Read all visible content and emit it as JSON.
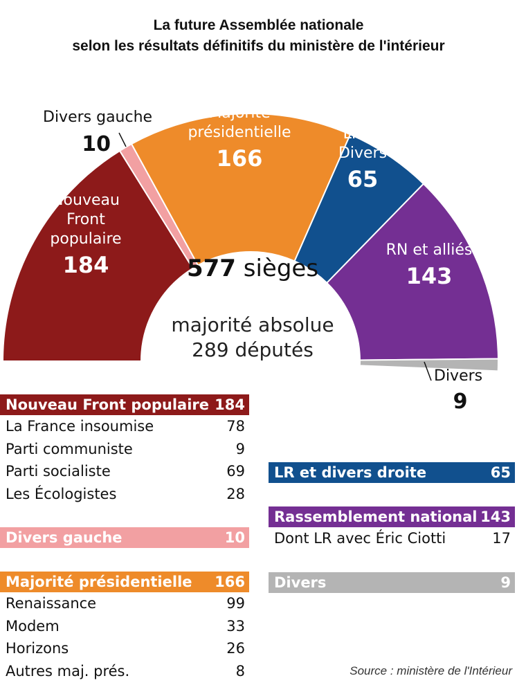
{
  "title_line1": "La future Assemblée nationale",
  "title_line2": "selon les résultats définitifs du ministère de l'intérieur",
  "chart_data": {
    "type": "pie",
    "layout": "hemicycle",
    "total_seats": 577,
    "series": [
      {
        "name": "Nouveau Front populaire",
        "label_lines": [
          "Nouveau",
          "Front",
          "populaire"
        ],
        "value": 184,
        "color": "#8d1a1a",
        "label_color": "#ffffff"
      },
      {
        "name": "Divers gauche",
        "label_lines": [
          "Divers gauche"
        ],
        "value": 10,
        "color": "#f2a0a2",
        "label_color": "#111111",
        "outside": true
      },
      {
        "name": "Majorité présidentielle",
        "label_lines": [
          "Majorité",
          "présidentielle"
        ],
        "value": 166,
        "color": "#ee8b2a",
        "label_color": "#ffffff"
      },
      {
        "name": "LR et Divers",
        "label_lines": [
          "LR et",
          "Divers"
        ],
        "value": 65,
        "color": "#11508e",
        "label_color": "#ffffff"
      },
      {
        "name": "RN et alliés",
        "label_lines": [
          "RN et alliés"
        ],
        "value": 143,
        "color": "#742f93",
        "label_color": "#ffffff"
      },
      {
        "name": "Divers",
        "label_lines": [
          "Divers"
        ],
        "value": 9,
        "color": "#b4b4b4",
        "label_color": "#111111",
        "outside": true
      }
    ]
  },
  "center": {
    "seats_number": "577",
    "seats_word": " sièges",
    "majority_line1": "majorité absolue",
    "majority_line2": "289 députés"
  },
  "left_table": [
    {
      "header": "Nouveau Front populaire",
      "value": "184",
      "style": "nfp",
      "rows": [
        {
          "label": "La France insoumise",
          "value": "78"
        },
        {
          "label": "Parti communiste",
          "value": "9"
        },
        {
          "label": "Parti socialiste",
          "value": "69"
        },
        {
          "label": "Les Écologistes",
          "value": "28"
        }
      ]
    },
    {
      "header": "Divers gauche",
      "value": "10",
      "style": "dg",
      "rows": []
    },
    {
      "header": "Majorité présidentielle",
      "value": "166",
      "style": "mp",
      "rows": [
        {
          "label": "Renaissance",
          "value": "99"
        },
        {
          "label": "Modem",
          "value": "33"
        },
        {
          "label": "Horizons",
          "value": "26"
        },
        {
          "label": "Autres maj. prés.",
          "value": "8"
        }
      ]
    }
  ],
  "right_table": [
    {
      "header": "LR et divers droite",
      "value": "65",
      "style": "lr",
      "rows": []
    },
    {
      "header": "Rassemblement national",
      "value": "143",
      "style": "rn",
      "rows": [
        {
          "label": "Dont LR avec Éric Ciotti",
          "value": "17"
        }
      ]
    },
    {
      "header": "Divers",
      "value": "9",
      "style": "dv",
      "rows": []
    }
  ],
  "source": "Source : ministère de l'Intérieur"
}
